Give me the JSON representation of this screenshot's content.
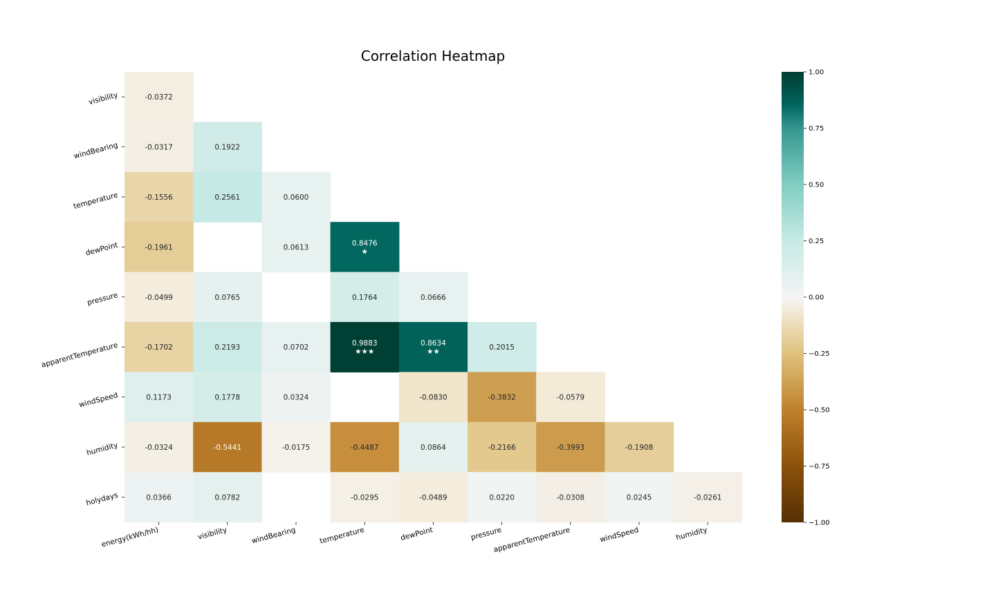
{
  "chart_data": {
    "type": "heatmap",
    "title": "Correlation Heatmap",
    "x_labels": [
      "energy(kWh/hh)",
      "visibility",
      "windBearing",
      "temperature",
      "dewPoint",
      "pressure",
      "apparentTemperature",
      "windSpeed",
      "humidity"
    ],
    "y_labels": [
      "visibility",
      "windBearing",
      "temperature",
      "dewPoint",
      "pressure",
      "apparentTemperature",
      "windSpeed",
      "humidity",
      "holydays"
    ],
    "cells": [
      [
        {
          "v": -0.0372,
          "t": "-0.0372"
        },
        null,
        null,
        null,
        null,
        null,
        null,
        null,
        null
      ],
      [
        {
          "v": -0.0317,
          "t": "-0.0317"
        },
        {
          "v": 0.1922,
          "t": "0.1922"
        },
        null,
        null,
        null,
        null,
        null,
        null,
        null
      ],
      [
        {
          "v": -0.1556,
          "t": "-0.1556"
        },
        {
          "v": 0.2561,
          "t": "0.2561"
        },
        {
          "v": 0.06,
          "t": "0.0600"
        },
        null,
        null,
        null,
        null,
        null,
        null
      ],
      [
        {
          "v": -0.1961,
          "t": "-0.1961"
        },
        null,
        {
          "v": 0.0613,
          "t": "0.0613"
        },
        {
          "v": 0.8476,
          "t": "0.8476",
          "stars": "★"
        },
        null,
        null,
        null,
        null,
        null
      ],
      [
        {
          "v": -0.0499,
          "t": "-0.0499"
        },
        {
          "v": 0.0765,
          "t": "0.0765"
        },
        null,
        {
          "v": 0.1764,
          "t": "0.1764"
        },
        {
          "v": 0.0666,
          "t": "0.0666"
        },
        null,
        null,
        null,
        null
      ],
      [
        {
          "v": -0.1702,
          "t": "-0.1702"
        },
        {
          "v": 0.2193,
          "t": "0.2193"
        },
        {
          "v": 0.0702,
          "t": "0.0702"
        },
        {
          "v": 0.9883,
          "t": "0.9883",
          "stars": "★★★"
        },
        {
          "v": 0.8634,
          "t": "0.8634",
          "stars": "★★"
        },
        {
          "v": 0.2015,
          "t": "0.2015"
        },
        null,
        null,
        null
      ],
      [
        {
          "v": 0.1173,
          "t": "0.1173"
        },
        {
          "v": 0.1778,
          "t": "0.1778"
        },
        {
          "v": 0.0324,
          "t": "0.0324"
        },
        null,
        {
          "v": -0.083,
          "t": "-0.0830"
        },
        {
          "v": -0.3832,
          "t": "-0.3832"
        },
        {
          "v": -0.0579,
          "t": "-0.0579"
        },
        null,
        null
      ],
      [
        {
          "v": -0.0324,
          "t": "-0.0324"
        },
        {
          "v": -0.5441,
          "t": "-0.5441"
        },
        {
          "v": -0.0175,
          "t": "-0.0175"
        },
        {
          "v": -0.4487,
          "t": "-0.4487"
        },
        {
          "v": 0.0864,
          "t": "0.0864"
        },
        {
          "v": -0.2166,
          "t": "-0.2166"
        },
        {
          "v": -0.3993,
          "t": "-0.3993"
        },
        {
          "v": -0.1908,
          "t": "-0.1908"
        },
        null
      ],
      [
        {
          "v": 0.0366,
          "t": "0.0366"
        },
        {
          "v": 0.0782,
          "t": "0.0782"
        },
        null,
        {
          "v": -0.0295,
          "t": "-0.0295"
        },
        {
          "v": -0.0489,
          "t": "-0.0489"
        },
        {
          "v": 0.022,
          "t": "0.0220"
        },
        {
          "v": -0.0308,
          "t": "-0.0308"
        },
        {
          "v": 0.0245,
          "t": "0.0245"
        },
        {
          "v": -0.0261,
          "t": "-0.0261"
        }
      ]
    ],
    "colorbar": {
      "range": [
        -1.0,
        1.0
      ],
      "ticks": [
        1.0,
        0.75,
        0.5,
        0.25,
        0.0,
        -0.25,
        -0.5,
        -0.75,
        -1.0
      ],
      "tick_labels": [
        "1.00",
        "0.75",
        "0.50",
        "0.25",
        "0.00",
        "−0.25",
        "−0.50",
        "−0.75",
        "−1.00"
      ]
    },
    "colormap": {
      "name": "BrBG",
      "stops": [
        [
          -1.0,
          "#543005"
        ],
        [
          -0.75,
          "#8c510a"
        ],
        [
          -0.5,
          "#bf812d"
        ],
        [
          -0.25,
          "#dfc27d"
        ],
        [
          -0.05,
          "#f4ecdc"
        ],
        [
          0.0,
          "#f5f5f5"
        ],
        [
          0.05,
          "#eaf2f1"
        ],
        [
          0.25,
          "#c7eae5"
        ],
        [
          0.5,
          "#80cdc1"
        ],
        [
          0.75,
          "#35978f"
        ],
        [
          0.85,
          "#01665e"
        ],
        [
          1.0,
          "#003c30"
        ]
      ]
    }
  }
}
